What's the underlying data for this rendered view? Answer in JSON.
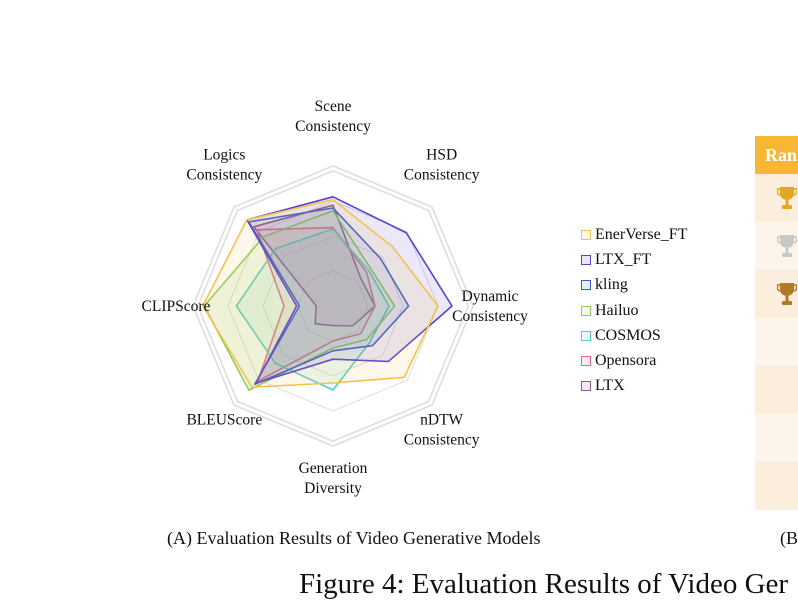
{
  "chart_data": {
    "type": "radar",
    "axes": [
      [
        "Scene",
        "Consistency"
      ],
      [
        "HSD",
        "Consistency"
      ],
      [
        "Dynamic",
        "Consistency"
      ],
      [
        "nDTW",
        "Consistency"
      ],
      [
        "Generation",
        "Diversity"
      ],
      [
        "BLEUScore"
      ],
      [
        "CLIPScore"
      ],
      [
        "Logics",
        "Consistency"
      ]
    ],
    "range": [
      0,
      1
    ],
    "grid": true,
    "legend_position": "right",
    "series": [
      {
        "name": "EnerVerse_FT",
        "color": "#f2c24d",
        "values": [
          0.76,
          0.6,
          0.75,
          0.72,
          0.55,
          0.82,
          0.93,
          0.87
        ]
      },
      {
        "name": "LTX_FT",
        "color": "#5b3fd1",
        "values": [
          0.78,
          0.74,
          0.85,
          0.56,
          0.38,
          0.78,
          0.26,
          0.87
        ]
      },
      {
        "name": "kling",
        "color": "#3a5fcd",
        "values": [
          0.7,
          0.48,
          0.54,
          0.4,
          0.32,
          0.79,
          0.24,
          0.85
        ]
      },
      {
        "name": "Hailuo",
        "color": "#8ecf5b",
        "values": [
          0.68,
          0.38,
          0.44,
          0.34,
          0.3,
          0.85,
          0.92,
          0.7
        ]
      },
      {
        "name": "COSMOS",
        "color": "#58cfc6",
        "values": [
          0.55,
          0.36,
          0.4,
          0.37,
          0.6,
          0.58,
          0.69,
          0.58
        ]
      },
      {
        "name": "Opensora",
        "color": "#e9698f",
        "values": [
          0.56,
          0.34,
          0.3,
          0.28,
          0.25,
          0.76,
          0.35,
          0.77
        ]
      },
      {
        "name": "LTX",
        "color": "#8e5b8a",
        "values": [
          0.72,
          0.28,
          0.3,
          0.2,
          0.14,
          0.18,
          0.12,
          0.8
        ]
      }
    ]
  },
  "captions": {
    "panel_a": "(A) Evaluation Results of Video Generative Models",
    "panel_b": "(B",
    "figure": "Figure 4: Evaluation Results of Video Ger"
  },
  "table_panel": {
    "header": "Ran",
    "header_color": "#f7b733",
    "row_colors": [
      "#fbeedd",
      "#fdf5ea",
      "#fbeedd",
      "#fdf5ea",
      "#fbeedd",
      "#fdf5ea",
      "#fbeedd"
    ],
    "trophy_colors": [
      "#e2a820",
      "#c8c8c8",
      "#b07a2a"
    ]
  }
}
